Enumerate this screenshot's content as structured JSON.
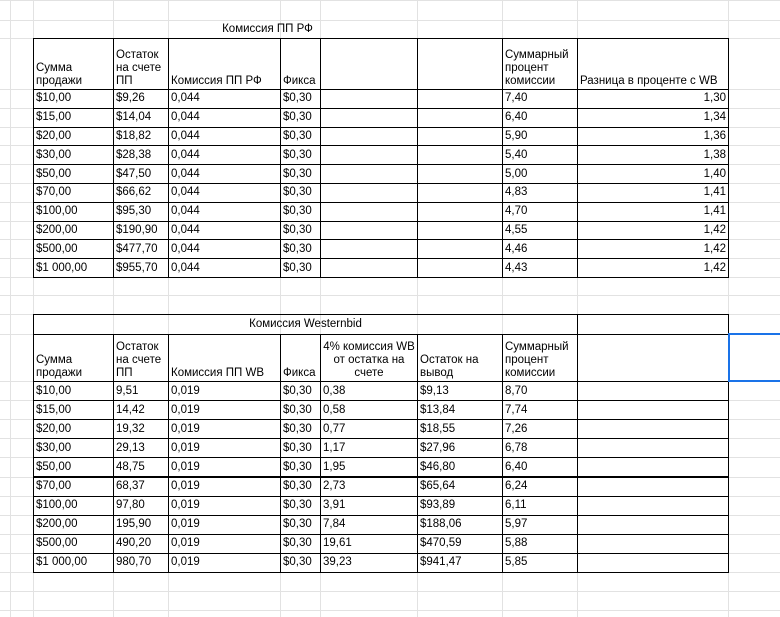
{
  "tables": [
    {
      "title": "Комиссия ПП РФ",
      "headers": [
        "Сумма продажи",
        "Остаток на счете ПП",
        "Комиссия ПП РФ",
        "Фикса",
        "Суммарный процент комиссии",
        "Разница в проценте с WB"
      ],
      "rows": [
        [
          "$10,00",
          "$9,26",
          "0,044",
          "$0,30",
          "7,40",
          "1,30"
        ],
        [
          "$15,00",
          "$14,04",
          "0,044",
          "$0,30",
          "6,40",
          "1,34"
        ],
        [
          "$20,00",
          "$18,82",
          "0,044",
          "$0,30",
          "5,90",
          "1,36"
        ],
        [
          "$30,00",
          "$28,38",
          "0,044",
          "$0,30",
          "5,40",
          "1,38"
        ],
        [
          "$50,00",
          "$47,50",
          "0,044",
          "$0,30",
          "5,00",
          "1,40"
        ],
        [
          "$70,00",
          "$66,62",
          "0,044",
          "$0,30",
          "4,83",
          "1,41"
        ],
        [
          "$100,00",
          "$95,30",
          "0,044",
          "$0,30",
          "4,70",
          "1,41"
        ],
        [
          "$200,00",
          "$190,90",
          "0,044",
          "$0,30",
          "4,55",
          "1,42"
        ],
        [
          "$500,00",
          "$477,70",
          "0,044",
          "$0,30",
          "4,46",
          "1,42"
        ],
        [
          "$1 000,00",
          "$955,70",
          "0,044",
          "$0,30",
          "4,43",
          "1,42"
        ]
      ]
    },
    {
      "title": "Комиссия Westernbid",
      "headers": [
        "Сумма продажи",
        "Остаток на счете ПП",
        "Комиссия ПП WB",
        "Фикса",
        "4% комиссия WB от остатка на счете",
        "Остаток на вывод",
        "Суммарный процент комиссии"
      ],
      "rows": [
        [
          "$10,00",
          "9,51",
          "0,019",
          "$0,30",
          "0,38",
          "$9,13",
          "8,70"
        ],
        [
          "$15,00",
          "14,42",
          "0,019",
          "$0,30",
          "0,58",
          "$13,84",
          "7,74"
        ],
        [
          "$20,00",
          "19,32",
          "0,019",
          "$0,30",
          "0,77",
          "$18,55",
          "7,26"
        ],
        [
          "$30,00",
          "29,13",
          "0,019",
          "$0,30",
          "1,17",
          "$27,96",
          "6,78"
        ],
        [
          "$50,00",
          "48,75",
          "0,019",
          "$0,30",
          "1,95",
          "$46,80",
          "6,40"
        ],
        [
          "$70,00",
          "68,37",
          "0,019",
          "$0,30",
          "2,73",
          "$65,64",
          "6,24"
        ],
        [
          "$100,00",
          "97,80",
          "0,019",
          "$0,30",
          "3,91",
          "$93,89",
          "6,11"
        ],
        [
          "$200,00",
          "195,90",
          "0,019",
          "$0,30",
          "7,84",
          "$188,06",
          "5,97"
        ],
        [
          "$500,00",
          "490,20",
          "0,019",
          "$0,30",
          "19,61",
          "$470,59",
          "5,88"
        ],
        [
          "$1 000,00",
          "980,70",
          "0,019",
          "$0,30",
          "39,23",
          "$941,47",
          "5,85"
        ]
      ]
    }
  ]
}
